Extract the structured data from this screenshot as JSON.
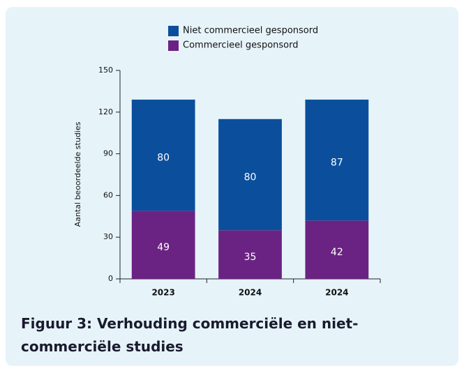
{
  "chart_data": {
    "type": "stacked_bar",
    "caption": "Figuur 3: Verhouding commerciële en niet-commerciële studies",
    "y_label": "Aantal beoordeelde studies",
    "categories": [
      "2023",
      "2024",
      "2024"
    ],
    "series": [
      {
        "name": "Commercieel gesponsord",
        "color": "#6a2383",
        "values": [
          49,
          35,
          42
        ]
      },
      {
        "name": "Niet commercieel gesponsord",
        "color": "#0b4f9c",
        "values": [
          80,
          80,
          87
        ]
      }
    ],
    "ylim": [
      0,
      150
    ],
    "yticks": [
      0,
      30,
      60,
      90,
      120,
      150
    ]
  }
}
